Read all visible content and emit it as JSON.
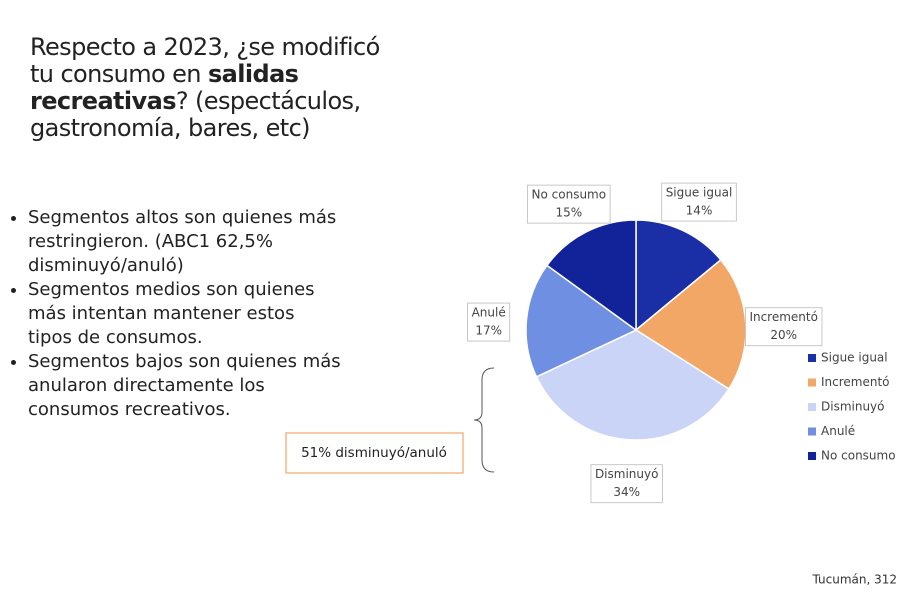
{
  "title_parts": [
    "Respecto a 2023, ¿se modificó tu consumo en ",
    "salidas recreativas",
    "? (espectáculos, gastronomía, bares, etc)"
  ],
  "bullets": [
    "Segmentos altos son  quienes más restringieron. (ABC1 62,5% disminuyó/anuló)",
    "Segmentos medios son quienes más intentan mantener estos tipos de consumos.",
    "Segmentos bajos son quienes más anularon directamente los consumos recreativos."
  ],
  "callout": "51% disminuyó/anuló",
  "footer": "Tucumán, 312",
  "chart_data": {
    "type": "pie",
    "categories": [
      "Sigue igual",
      "Incrementó",
      "Disminuyó",
      "Anulé",
      "No consumo"
    ],
    "values": [
      14,
      20,
      34,
      17,
      15
    ],
    "value_labels": [
      "14%",
      "20%",
      "34%",
      "17%",
      "15%"
    ],
    "colors": [
      "#1a2fa6",
      "#f2a766",
      "#cad4f6",
      "#6f8fe2",
      "#12239a"
    ],
    "legend": "right"
  }
}
